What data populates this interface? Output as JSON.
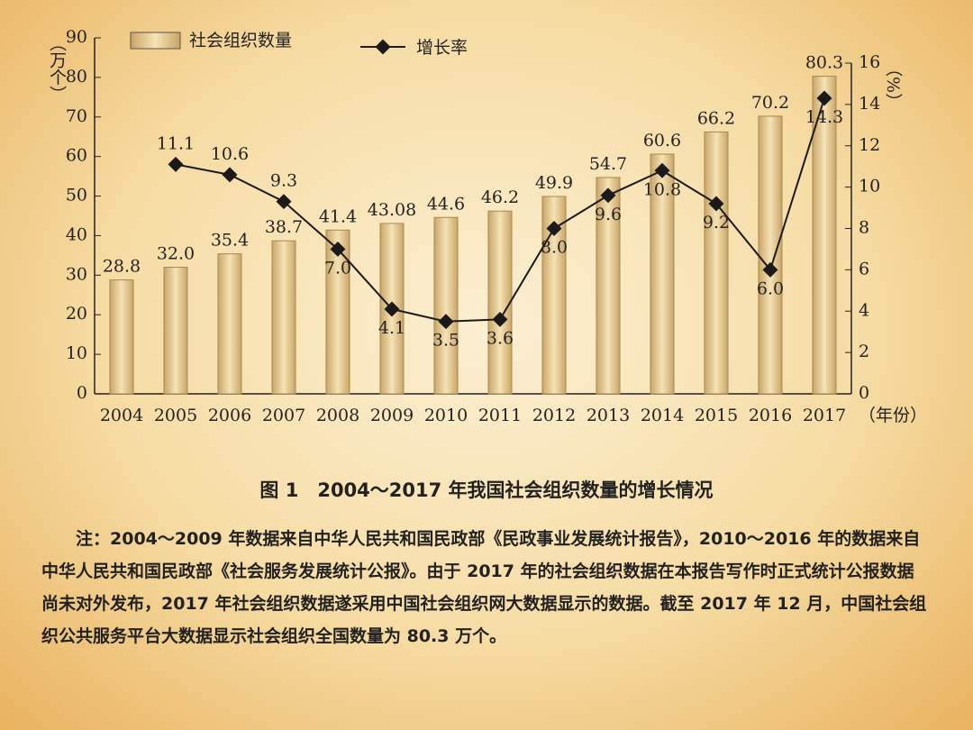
{
  "chart_data": {
    "type": "bar-line",
    "legend_position": "top",
    "categories": [
      "2004",
      "2005",
      "2006",
      "2007",
      "2008",
      "2009",
      "2010",
      "2011",
      "2012",
      "2013",
      "2014",
      "2015",
      "2016",
      "2017"
    ],
    "x_label": "（年份）",
    "y_label": "（万个）",
    "y2_label": "（%）",
    "ylim": [
      0,
      90
    ],
    "yticks": [
      0,
      10,
      20,
      30,
      40,
      50,
      60,
      70,
      80,
      90
    ],
    "y2lim": [
      0,
      16
    ],
    "y2ticks": [
      0,
      2,
      4,
      6,
      8,
      10,
      12,
      14,
      16
    ],
    "series": [
      {
        "name": "社会组织数量",
        "color": "#e9cd92",
        "values": [
          28.8,
          32.0,
          35.4,
          38.7,
          41.4,
          43.08,
          44.6,
          46.2,
          49.9,
          54.7,
          60.6,
          66.2,
          70.2,
          80.3
        ],
        "value_labels": [
          "28.8",
          "32.0",
          "35.4",
          "38.7",
          "41.4",
          "43.08",
          "44.6",
          "46.2",
          "49.9",
          "54.7",
          "60.6",
          "66.2",
          "70.2",
          "80.3"
        ]
      },
      {
        "name": "增长率",
        "color": "#1a1a1a",
        "axis": "y2",
        "values": [
          null,
          11.1,
          10.6,
          9.3,
          7.0,
          4.1,
          3.5,
          3.6,
          8.0,
          9.6,
          10.8,
          9.2,
          6.0,
          14.3
        ],
        "value_labels": [
          null,
          "11.1",
          "10.6",
          "9.3",
          "7.0",
          "4.1",
          "3.5",
          "3.6",
          "8.0",
          "9.6",
          "10.8",
          "9.2",
          "6.0",
          "14.3"
        ]
      }
    ]
  },
  "caption": "图 1　2004～2017 年我国社会组织数量的增长情况",
  "note": "注：2004～2009 年数据来自中华人民共和国民政部《民政事业发展统计报告》，2010～2016 年的数据来自中华人民共和国民政部《社会服务发展统计公报》。由于 2017 年的社会组织数据在本报告写作时正式统计公报数据尚未对外发布，2017 年社会组织数据遂采用中国社会组织网大数据显示的数据。截至 2017 年 12 月，中国社会组织公共服务平台大数据显示社会组织全国数量为 80.3 万个。"
}
